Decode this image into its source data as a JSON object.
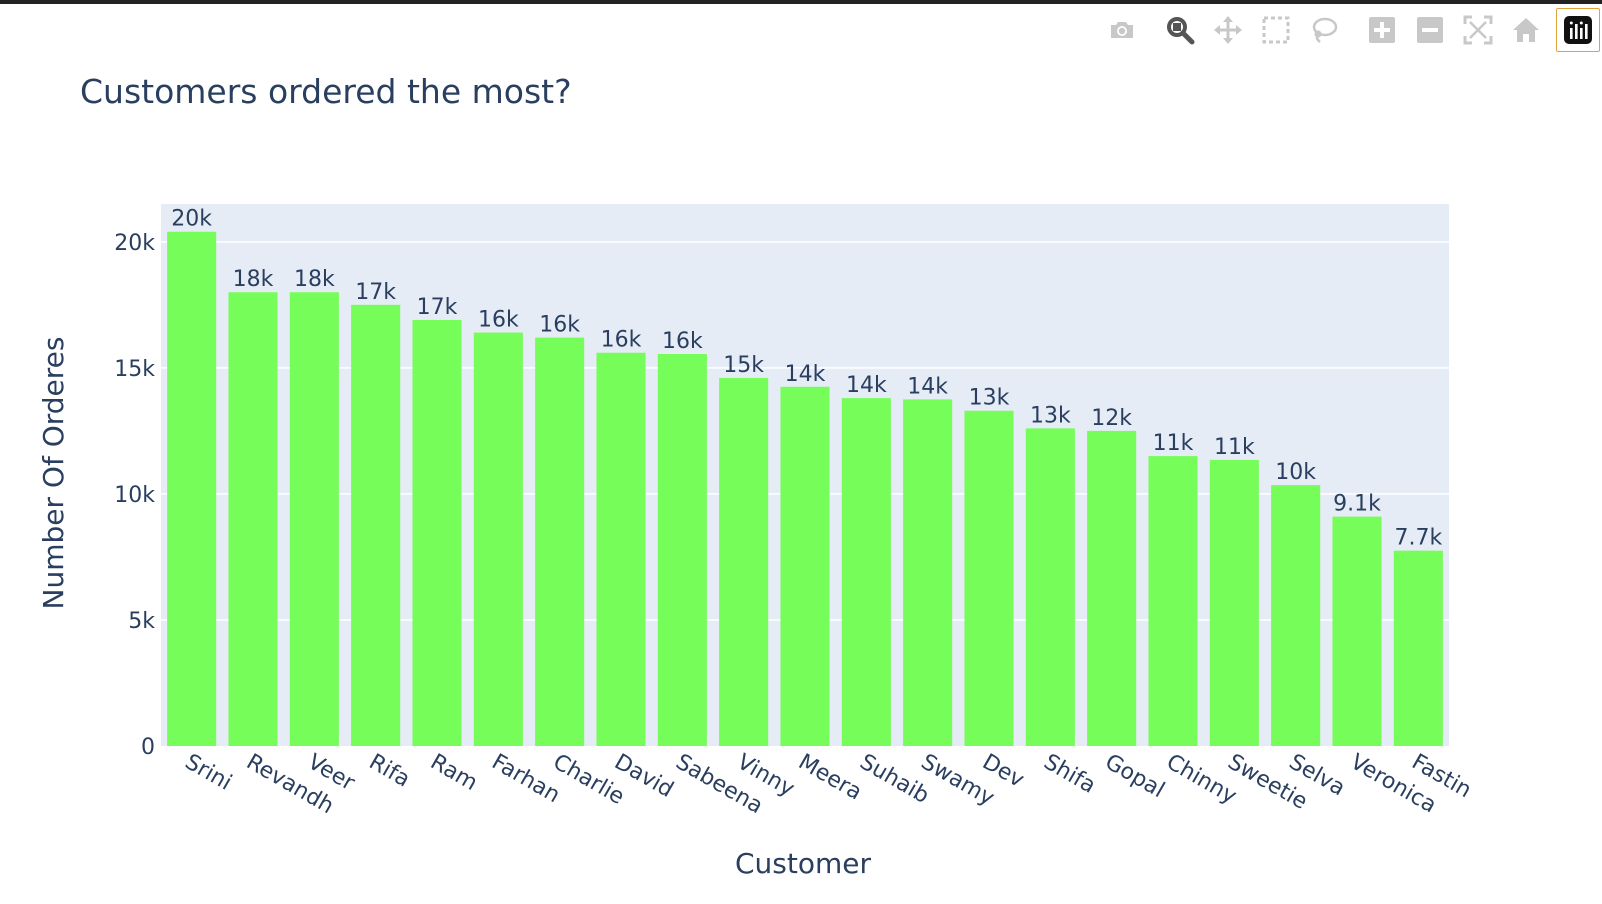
{
  "modebar": {
    "buttons": [
      {
        "name": "camera-icon",
        "title": "Download plot as a png"
      },
      {
        "name": "zoom-icon",
        "title": "Zoom",
        "active": true
      },
      {
        "name": "pan-icon",
        "title": "Pan"
      },
      {
        "name": "box-select-icon",
        "title": "Box Select"
      },
      {
        "name": "lasso-select-icon",
        "title": "Lasso Select"
      },
      {
        "name": "zoom-in-icon",
        "title": "Zoom in"
      },
      {
        "name": "zoom-out-icon",
        "title": "Zoom out"
      },
      {
        "name": "autoscale-icon",
        "title": "Autoscale"
      },
      {
        "name": "reset-axes-icon",
        "title": "Reset axes"
      },
      {
        "name": "plotly-logo-icon",
        "title": "Produced with Plotly"
      }
    ],
    "icon_color": "#c8c8c8",
    "active_color": "#555555"
  },
  "chart_data": {
    "type": "bar",
    "title": "Customers ordered the most?",
    "xlabel": "Customer",
    "ylabel": "Number Of Orderes",
    "categories": [
      "Srini",
      "Revandh",
      "Veer",
      "Rifa",
      "Ram",
      "Farhan",
      "Charlie",
      "David",
      "Sabeena",
      "Vinny",
      "Meera",
      "Suhaib",
      "Swamy",
      "Dev",
      "Shifa",
      "Gopal",
      "Chinny",
      "Sweetie",
      "Selva",
      "Veronica",
      "Fastin"
    ],
    "values": [
      20400,
      18000,
      18000,
      17500,
      16900,
      16400,
      16200,
      15600,
      15550,
      14600,
      14250,
      13800,
      13750,
      13300,
      12600,
      12500,
      11500,
      11350,
      10350,
      9100,
      7750
    ],
    "text_labels": [
      "20k",
      "18k",
      "18k",
      "17k",
      "17k",
      "16k",
      "16k",
      "16k",
      "16k",
      "15k",
      "14k",
      "14k",
      "14k",
      "13k",
      "13k",
      "12k",
      "11k",
      "11k",
      "10k",
      "9.1k",
      "7.7k"
    ],
    "ylim": [
      0,
      21500
    ],
    "yticks": [
      0,
      5000,
      10000,
      15000,
      20000
    ],
    "ytick_labels": [
      "0",
      "5k",
      "10k",
      "15k",
      "20k"
    ],
    "grid": true,
    "bar_color": "#77fd5a",
    "plot_bg": "#e5ecf6",
    "grid_color": "#ffffff",
    "text_color": "#2a3f5f"
  }
}
